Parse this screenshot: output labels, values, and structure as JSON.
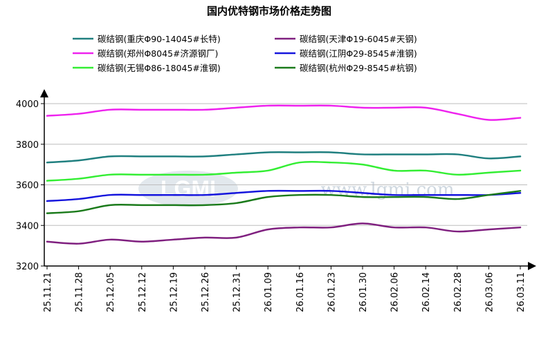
{
  "chart_data": {
    "type": "line",
    "title": "国内优特钢市场价格走势图",
    "watermark": {
      "logo": "LGMI",
      "url": "www.lgmi.com"
    },
    "x": [
      "25.11.21",
      "25.11.28",
      "25.12.05",
      "25.12.12",
      "25.12.19",
      "25.12.26",
      "25.12.31",
      "26.01.09",
      "26.01.16",
      "26.01.23",
      "26.01.30",
      "26.02.06",
      "26.02.14",
      "26.02.28",
      "26.03.06",
      "26.03.11"
    ],
    "xlabel": "",
    "ylabel": "",
    "ylim": [
      3200,
      4000
    ],
    "yticks": [
      3200,
      3400,
      3600,
      3800,
      4000
    ],
    "grid": true,
    "legend_position": "top",
    "series": [
      {
        "name": "碳结钢(重庆Φ90-14045#长特)",
        "color": "#1f7f7f",
        "values": [
          3710,
          3720,
          3740,
          3740,
          3740,
          3740,
          3750,
          3760,
          3760,
          3760,
          3750,
          3750,
          3750,
          3750,
          3730,
          3740
        ]
      },
      {
        "name": "碳结钢(天津Φ19-6045#天钢)",
        "color": "#7f1f7f",
        "values": [
          3320,
          3310,
          3330,
          3320,
          3330,
          3340,
          3340,
          3380,
          3390,
          3390,
          3410,
          3390,
          3390,
          3370,
          3380,
          3390
        ]
      },
      {
        "name": "碳结钢(郑州Φ8045#济源钢厂)",
        "color": "#ee22ee",
        "values": [
          3940,
          3950,
          3970,
          3970,
          3970,
          3970,
          3980,
          3990,
          3990,
          3990,
          3980,
          3980,
          3980,
          3950,
          3920,
          3930
        ]
      },
      {
        "name": "碳结钢(江阴Φ29-8545#淮钢)",
        "color": "#1515dd",
        "values": [
          3520,
          3530,
          3550,
          3550,
          3550,
          3550,
          3560,
          3570,
          3570,
          3570,
          3560,
          3550,
          3550,
          3550,
          3550,
          3560
        ]
      },
      {
        "name": "碳结钢(无锡Φ86-18045#淮钢)",
        "color": "#33ee33",
        "values": [
          3620,
          3630,
          3650,
          3650,
          3650,
          3650,
          3660,
          3670,
          3710,
          3710,
          3700,
          3670,
          3670,
          3650,
          3660,
          3670
        ]
      },
      {
        "name": "碳结钢(杭州Φ29-8545#杭钢)",
        "color": "#1a7a1a",
        "values": [
          3460,
          3470,
          3500,
          3500,
          3500,
          3500,
          3510,
          3540,
          3550,
          3550,
          3540,
          3540,
          3540,
          3530,
          3550,
          3570
        ]
      }
    ]
  }
}
